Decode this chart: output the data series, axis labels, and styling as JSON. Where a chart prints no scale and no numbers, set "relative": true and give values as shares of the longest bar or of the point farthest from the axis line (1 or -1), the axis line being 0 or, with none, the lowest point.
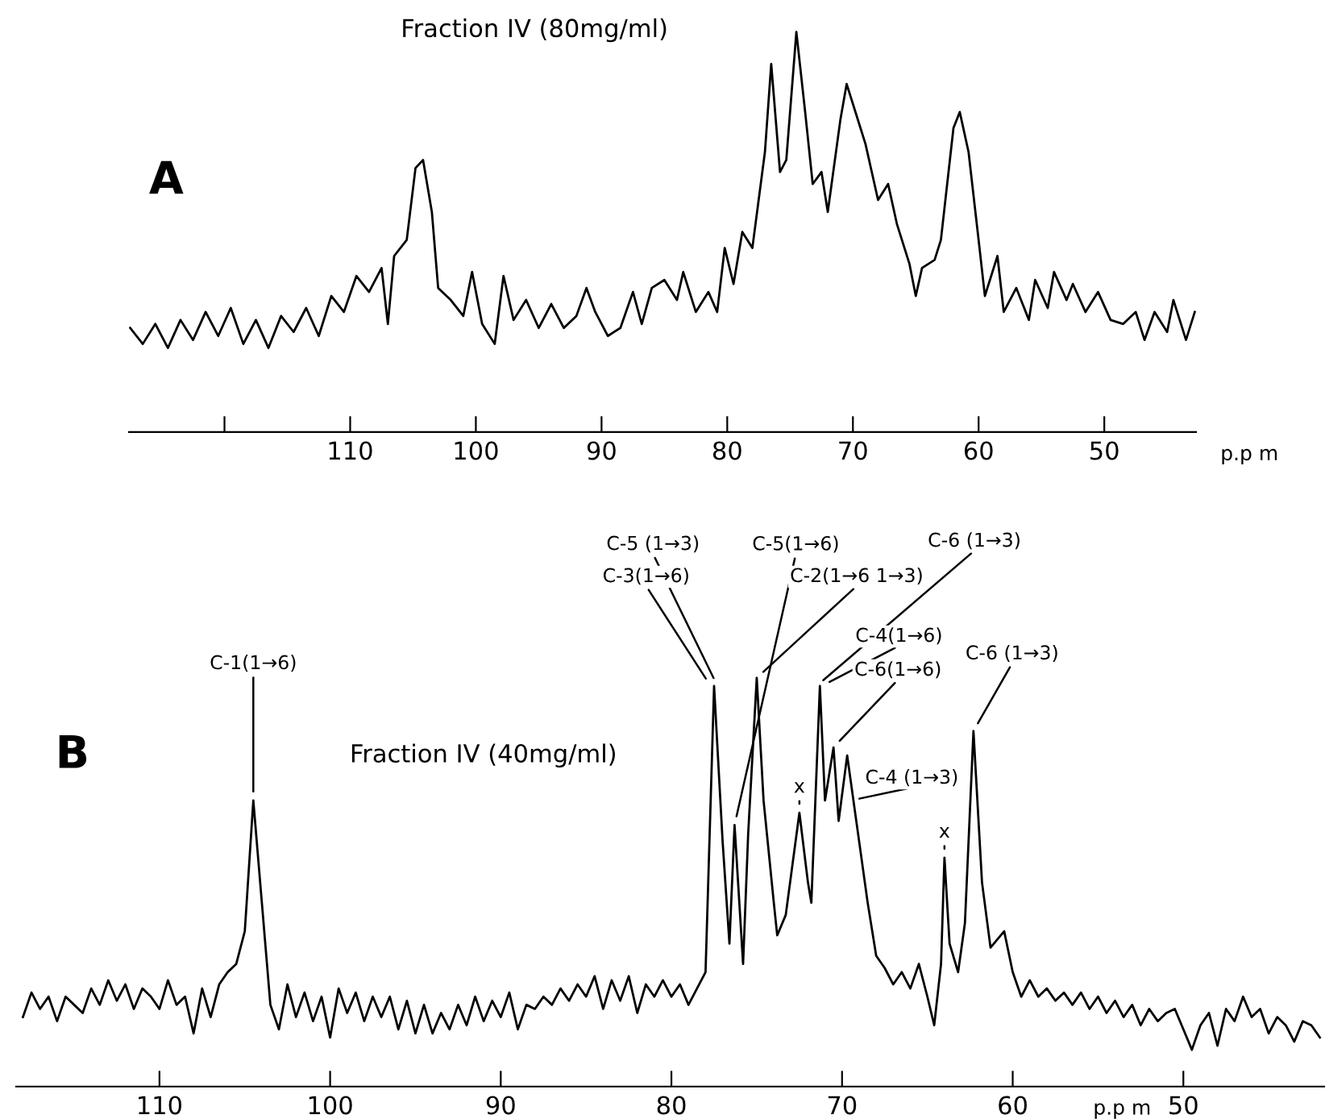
{
  "chart_data": [
    {
      "type": "line",
      "title": "Fraction IV (80mg/ml)",
      "xlabel": "p.p m",
      "relative": true,
      "xlim": [
        127.6,
        42.7
      ],
      "xticks": [
        {
          "value": 120,
          "label": null
        },
        110,
        100,
        90,
        80,
        70,
        60,
        50
      ],
      "annotations": [
        "A"
      ],
      "x": [
        127.5,
        126.5,
        125.5,
        124.5,
        123.5,
        122.5,
        121.5,
        120.5,
        119.5,
        118.5,
        117.5,
        116.5,
        115.5,
        114.5,
        113.5,
        112.5,
        111.5,
        110.5,
        109.5,
        108.5,
        107.5,
        107,
        106.5,
        105.5,
        104.8,
        104.2,
        103.5,
        103,
        102,
        101,
        100.3,
        99.5,
        98.5,
        97.8,
        97,
        96,
        95,
        94,
        93,
        92,
        91.2,
        90.5,
        89.5,
        88.5,
        87.5,
        86.8,
        86,
        85,
        84,
        83.5,
        82.5,
        81.5,
        80.8,
        80.2,
        79.5,
        78.8,
        78,
        77,
        76.5,
        75.8,
        75.3,
        74.5,
        73.8,
        73.2,
        72.5,
        72,
        71,
        70.5,
        69.5,
        69,
        68,
        67.2,
        66.5,
        65.5,
        65,
        64.5,
        63.5,
        63,
        62,
        61.5,
        60.8,
        60,
        59.5,
        58.5,
        58,
        57,
        56,
        55.5,
        54.5,
        54,
        53,
        52.5,
        51.5,
        50.5,
        49.5,
        48.5,
        47.5,
        46.8,
        46,
        45,
        44.5,
        43.5,
        42.8
      ],
      "series": [
        {
          "color": "#000000",
          "values": [
            0.26,
            0.22,
            0.27,
            0.21,
            0.28,
            0.23,
            0.3,
            0.24,
            0.31,
            0.22,
            0.28,
            0.21,
            0.29,
            0.25,
            0.31,
            0.24,
            0.34,
            0.3,
            0.39,
            0.35,
            0.41,
            0.27,
            0.44,
            0.48,
            0.66,
            0.68,
            0.55,
            0.36,
            0.33,
            0.29,
            0.4,
            0.27,
            0.22,
            0.39,
            0.28,
            0.33,
            0.26,
            0.32,
            0.26,
            0.29,
            0.36,
            0.3,
            0.24,
            0.26,
            0.35,
            0.27,
            0.36,
            0.38,
            0.33,
            0.4,
            0.3,
            0.35,
            0.3,
            0.46,
            0.37,
            0.5,
            0.46,
            0.7,
            0.92,
            0.65,
            0.68,
            1.0,
            0.8,
            0.62,
            0.65,
            0.55,
            0.78,
            0.87,
            0.77,
            0.72,
            0.58,
            0.62,
            0.52,
            0.42,
            0.34,
            0.41,
            0.43,
            0.48,
            0.76,
            0.8,
            0.7,
            0.48,
            0.34,
            0.44,
            0.3,
            0.36,
            0.28,
            0.38,
            0.31,
            0.4,
            0.33,
            0.37,
            0.3,
            0.35,
            0.28,
            0.27,
            0.3,
            0.23,
            0.3,
            0.25,
            0.33,
            0.23,
            0.3
          ]
        }
      ]
    },
    {
      "type": "line",
      "title": "Fraction IV (40mg/ml)",
      "xlabel": "p.p m",
      "relative": true,
      "xlim": [
        118.4,
        41.7
      ],
      "xticks": [
        110,
        100,
        90,
        80,
        70,
        60,
        50
      ],
      "annotations": [
        "B",
        {
          "text": "C-1(1→6)",
          "x": 104.5,
          "y": 0.7
        },
        {
          "text": "C-3(1→6)",
          "x": 77.7,
          "y": 0.98
        },
        {
          "text": "C-5 (1→3)",
          "x": 77.3,
          "y": 0.98
        },
        {
          "text": "C-5(1→6)",
          "x": 76.3,
          "y": 0.64
        },
        {
          "text": "C-2(1→6 1→3)",
          "x": 75,
          "y": 1.0
        },
        {
          "text": "C-6 (1→3)",
          "x": 71.5,
          "y": 0.98
        },
        {
          "text": "C-4(1→6)",
          "x": 71.2,
          "y": 0.98
        },
        {
          "text": "C-6(1→6)",
          "x": 70.5,
          "y": 0.83
        },
        {
          "text": "C-4 (1→3)",
          "x": 69.5,
          "y": 0.7
        },
        {
          "text": "C-6 (1→3)",
          "x": 62.3,
          "y": 0.87
        },
        {
          "text": "x",
          "x": 72.5,
          "y": 0.67
        },
        {
          "text": "x",
          "x": 64,
          "y": 0.56
        }
      ],
      "x": [
        118,
        117.5,
        117,
        116.5,
        116,
        115.5,
        115,
        114.5,
        114,
        113.5,
        113,
        112.5,
        112,
        111.5,
        111,
        110.5,
        110,
        109.5,
        109,
        108.5,
        108,
        107.5,
        107,
        106.5,
        106,
        105.5,
        105,
        104.5,
        104,
        103.5,
        103,
        102.5,
        102,
        101.5,
        101,
        100.5,
        100,
        99.5,
        99,
        98.5,
        98,
        97.5,
        97,
        96.5,
        96,
        95.5,
        95,
        94.5,
        94,
        93.5,
        93,
        92.5,
        92,
        91.5,
        91,
        90.5,
        90,
        89.5,
        89,
        88.5,
        88,
        87.5,
        87,
        86.5,
        86,
        85.5,
        85,
        84.5,
        84,
        83.5,
        83,
        82.5,
        82,
        81.5,
        81,
        80.5,
        80,
        79.5,
        79,
        78.5,
        78,
        77.5,
        77,
        76.6,
        76.3,
        75.8,
        75.5,
        75,
        74.6,
        74,
        73.8,
        73.3,
        72.5,
        72,
        71.8,
        71.3,
        71,
        70.5,
        70.2,
        69.7,
        69,
        68.5,
        68,
        67.5,
        67,
        66.5,
        66,
        65.5,
        65,
        64.6,
        64.2,
        64,
        63.7,
        63.2,
        62.8,
        62.3,
        61.8,
        61.3,
        60.5,
        60,
        59.5,
        59,
        58.5,
        58,
        57.5,
        57,
        56.5,
        56,
        55.5,
        55,
        54.5,
        54,
        53.5,
        53,
        52.5,
        52,
        51.5,
        51,
        50.5,
        50,
        49.5,
        49,
        48.5,
        48,
        47.5,
        47,
        46.5,
        46,
        45.5,
        45,
        44.5,
        44,
        43.5,
        43,
        42.5,
        42
      ],
      "series": [
        {
          "color": "#000000",
          "values": [
            0.17,
            0.23,
            0.19,
            0.22,
            0.16,
            0.22,
            0.2,
            0.18,
            0.24,
            0.2,
            0.26,
            0.21,
            0.25,
            0.19,
            0.24,
            0.22,
            0.19,
            0.26,
            0.2,
            0.22,
            0.13,
            0.24,
            0.17,
            0.25,
            0.28,
            0.3,
            0.38,
            0.7,
            0.45,
            0.2,
            0.14,
            0.25,
            0.17,
            0.23,
            0.16,
            0.22,
            0.12,
            0.24,
            0.18,
            0.23,
            0.16,
            0.22,
            0.17,
            0.22,
            0.14,
            0.21,
            0.13,
            0.2,
            0.13,
            0.18,
            0.14,
            0.2,
            0.15,
            0.22,
            0.16,
            0.21,
            0.17,
            0.23,
            0.14,
            0.2,
            0.19,
            0.22,
            0.2,
            0.24,
            0.21,
            0.25,
            0.22,
            0.27,
            0.19,
            0.26,
            0.21,
            0.27,
            0.18,
            0.25,
            0.22,
            0.26,
            0.22,
            0.25,
            0.2,
            0.24,
            0.28,
            0.98,
            0.6,
            0.35,
            0.64,
            0.3,
            0.62,
            1.0,
            0.7,
            0.45,
            0.37,
            0.42,
            0.67,
            0.5,
            0.45,
            0.98,
            0.7,
            0.83,
            0.65,
            0.81,
            0.6,
            0.45,
            0.32,
            0.29,
            0.25,
            0.28,
            0.24,
            0.3,
            0.22,
            0.15,
            0.3,
            0.56,
            0.35,
            0.28,
            0.4,
            0.87,
            0.5,
            0.34,
            0.38,
            0.28,
            0.22,
            0.26,
            0.22,
            0.24,
            0.21,
            0.23,
            0.2,
            0.23,
            0.19,
            0.22,
            0.18,
            0.21,
            0.17,
            0.2,
            0.15,
            0.19,
            0.16,
            0.18,
            0.19,
            0.14,
            0.09,
            0.15,
            0.18,
            0.1,
            0.19,
            0.16,
            0.22,
            0.17,
            0.19,
            0.13,
            0.17,
            0.15,
            0.11,
            0.16,
            0.15,
            0.12
          ]
        }
      ]
    }
  ]
}
